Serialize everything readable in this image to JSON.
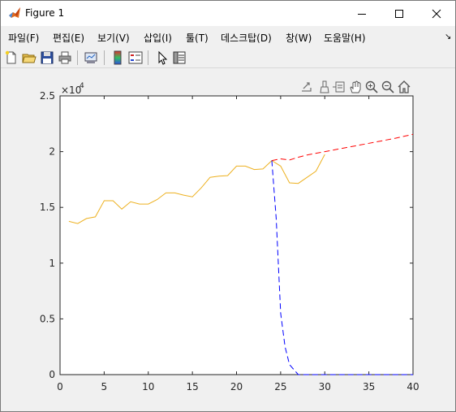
{
  "window": {
    "title": "Figure 1"
  },
  "menu": {
    "items": [
      "파일(F)",
      "편집(E)",
      "보기(V)",
      "삽입(I)",
      "툴(T)",
      "데스크탑(D)",
      "창(W)",
      "도움말(H)"
    ],
    "more": "↘"
  },
  "toolbar": {
    "icons": [
      "new-figure-icon",
      "open-file-icon",
      "save-icon",
      "print-icon",
      "link-plot-icon",
      "colorbar-icon",
      "legend-icon",
      "edit-plot-arrow-icon",
      "property-inspector-icon"
    ]
  },
  "axes_toolbar": {
    "icons": [
      "export-icon",
      "brush-icon",
      "data-tips-icon",
      "pan-icon",
      "zoom-in-icon",
      "zoom-out-icon",
      "home-icon"
    ]
  },
  "colors": {
    "series_actual": "#EDB120",
    "series_forecast": "#FF0000",
    "series_drop": "#0000FF"
  },
  "chart_data": {
    "type": "line",
    "xlim": [
      0,
      40
    ],
    "ylim": [
      0,
      25000
    ],
    "y_exponent_label": "×10",
    "y_exponent_power": "4",
    "xticks": [
      0,
      5,
      10,
      15,
      20,
      25,
      30,
      35,
      40
    ],
    "xtick_labels": [
      "0",
      "5",
      "10",
      "15",
      "20",
      "25",
      "30",
      "35",
      "40"
    ],
    "yticks": [
      0,
      5000,
      10000,
      15000,
      20000,
      25000
    ],
    "ytick_labels": [
      "0",
      "0.5",
      "1",
      "1.5",
      "2",
      "2.5"
    ],
    "grid": false,
    "series": [
      {
        "style": "solid",
        "color": "#EDB120",
        "x": [
          1,
          2,
          3,
          4,
          5,
          6,
          7,
          8,
          9,
          10,
          11,
          12,
          13,
          14,
          15,
          16,
          17,
          18,
          19,
          20,
          21,
          22,
          23,
          24,
          25,
          26,
          27,
          28,
          29,
          30
        ],
        "y": [
          13750,
          13550,
          14000,
          14150,
          15600,
          15600,
          14850,
          15500,
          15300,
          15300,
          15700,
          16300,
          16300,
          16100,
          15950,
          16750,
          17700,
          17800,
          17850,
          18700,
          18700,
          18400,
          18450,
          19200,
          18700,
          17200,
          17150,
          17700,
          18250,
          19750
        ]
      },
      {
        "style": "dashed",
        "color": "#FF0000",
        "x": [
          24,
          25,
          26,
          27,
          28,
          30,
          32,
          34,
          36,
          38,
          40
        ],
        "y": [
          19200,
          19350,
          19250,
          19500,
          19700,
          20000,
          20300,
          20600,
          20900,
          21200,
          21550
        ]
      },
      {
        "style": "dashed",
        "color": "#0000FF",
        "x": [
          24,
          24.5,
          25,
          25.5,
          26,
          27,
          28,
          30,
          35,
          40
        ],
        "y": [
          19200,
          14000,
          5500,
          2500,
          900,
          0,
          0,
          0,
          0,
          0
        ]
      }
    ]
  }
}
